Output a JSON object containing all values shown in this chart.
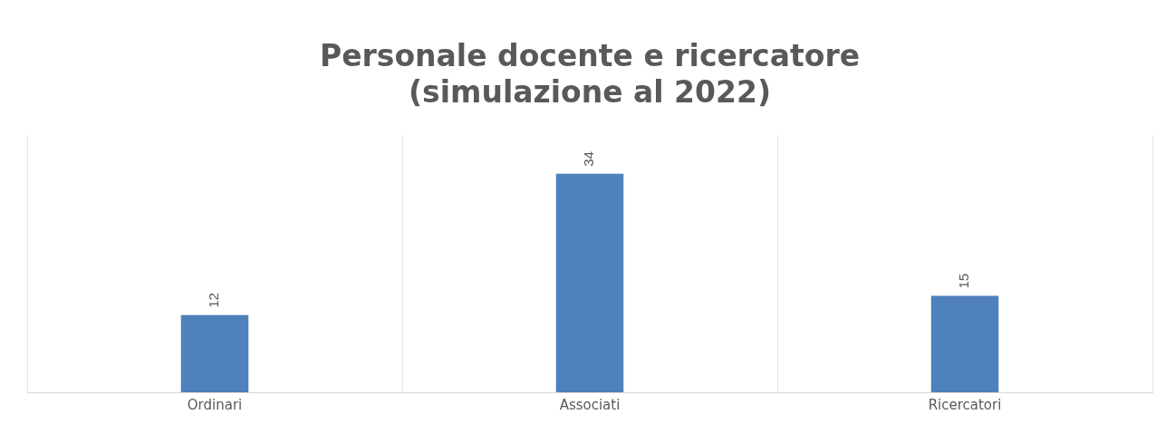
{
  "chart_data": {
    "type": "bar",
    "title": [
      "Personale docente e ricercatore",
      "(simulazione al 2022)"
    ],
    "categories": [
      "Ordinari",
      "Associati",
      "Ricercatori"
    ],
    "values": [
      12,
      34,
      15
    ],
    "color": "#4f81bd",
    "ylim": [
      0,
      40
    ],
    "data_labels": true,
    "grid": "x",
    "legend": false
  }
}
